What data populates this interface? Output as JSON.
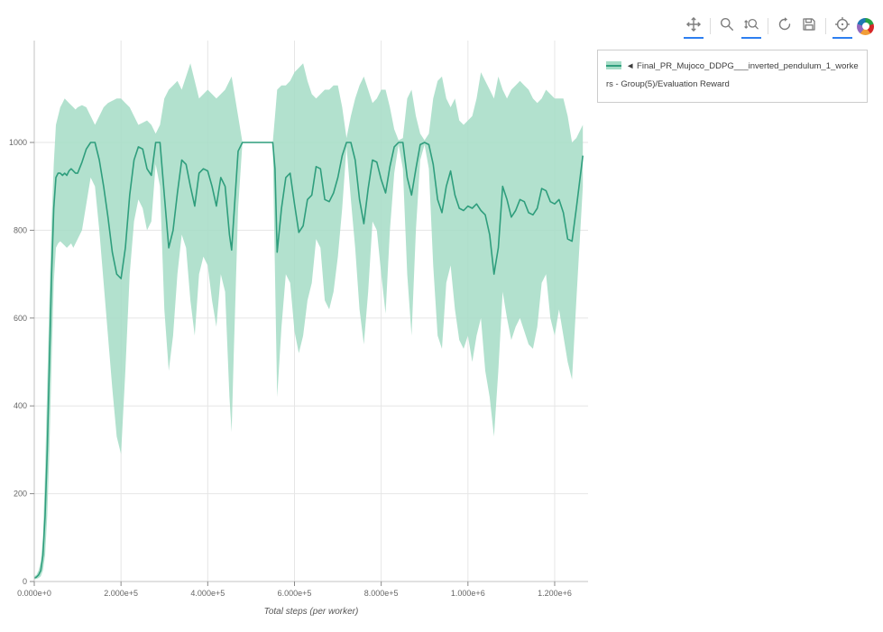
{
  "toolbar": {
    "tools": [
      {
        "name": "pan",
        "active": true
      },
      {
        "name": "box-zoom",
        "active": false
      },
      {
        "name": "wheel-zoom",
        "active": true
      },
      {
        "name": "reset",
        "active": false
      },
      {
        "name": "save",
        "active": false
      },
      {
        "name": "hover",
        "active": true
      }
    ],
    "logo_name": "bokeh-logo"
  },
  "legend": {
    "label": "◄ Final_PR_Mujoco_DDPG___inverted_pendulum_1_workers - Group(5)/Evaluation Reward"
  },
  "chart_data": {
    "type": "line",
    "title": "",
    "xlabel": "Total steps (per worker)",
    "ylabel": "",
    "xlim": [
      0,
      1277000
    ],
    "ylim": [
      0,
      1232
    ],
    "grid": true,
    "legend_position": "top-right-outside",
    "x_ticks": {
      "values": [
        0,
        200000,
        400000,
        600000,
        800000,
        1000000,
        1200000
      ],
      "labels": [
        "0.000e+0",
        "2.000e+5",
        "4.000e+5",
        "6.000e+5",
        "8.000e+5",
        "1.000e+6",
        "1.200e+6"
      ]
    },
    "y_ticks": {
      "values": [
        0,
        200,
        400,
        600,
        800,
        1000
      ],
      "labels": [
        "0",
        "200",
        "400",
        "600",
        "800",
        "1000"
      ]
    },
    "colors": {
      "line": "#2f9e7d",
      "band": "#a5dcc6",
      "grid": "#e6e6e6",
      "axis": "#c3c3c3",
      "tick": "#8a8a8a",
      "tick_text": "#666666",
      "xlabel_text": "#555555"
    },
    "series": [
      {
        "name": "Final_PR_Mujoco_DDPG___inverted_pendulum_1_workers - Group(5)/Evaluation Reward",
        "note": "points are [x_steps, mean, lower_band, upper_band]",
        "points": [
          [
            0,
            8,
            5,
            12
          ],
          [
            5000,
            10,
            6,
            15
          ],
          [
            10000,
            15,
            8,
            25
          ],
          [
            15000,
            25,
            12,
            45
          ],
          [
            20000,
            60,
            25,
            100
          ],
          [
            25000,
            150,
            60,
            250
          ],
          [
            30000,
            300,
            150,
            450
          ],
          [
            35000,
            500,
            300,
            650
          ],
          [
            40000,
            700,
            500,
            820
          ],
          [
            45000,
            850,
            680,
            950
          ],
          [
            50000,
            920,
            760,
            1040
          ],
          [
            55000,
            930,
            770,
            1060
          ],
          [
            60000,
            930,
            775,
            1080
          ],
          [
            65000,
            925,
            770,
            1090
          ],
          [
            70000,
            930,
            765,
            1100
          ],
          [
            75000,
            925,
            760,
            1095
          ],
          [
            80000,
            935,
            765,
            1090
          ],
          [
            85000,
            940,
            770,
            1085
          ],
          [
            90000,
            935,
            760,
            1080
          ],
          [
            95000,
            930,
            770,
            1075
          ],
          [
            100000,
            930,
            780,
            1080
          ],
          [
            110000,
            955,
            800,
            1085
          ],
          [
            120000,
            985,
            860,
            1080
          ],
          [
            130000,
            1000,
            920,
            1060
          ],
          [
            140000,
            1000,
            900,
            1040
          ],
          [
            150000,
            960,
            800,
            1060
          ],
          [
            160000,
            900,
            680,
            1080
          ],
          [
            170000,
            830,
            560,
            1090
          ],
          [
            180000,
            750,
            440,
            1095
          ],
          [
            190000,
            700,
            330,
            1100
          ],
          [
            200000,
            690,
            290,
            1100
          ],
          [
            210000,
            760,
            480,
            1090
          ],
          [
            220000,
            880,
            700,
            1080
          ],
          [
            230000,
            960,
            820,
            1060
          ],
          [
            240000,
            990,
            870,
            1040
          ],
          [
            250000,
            985,
            850,
            1045
          ],
          [
            260000,
            940,
            800,
            1050
          ],
          [
            270000,
            925,
            820,
            1040
          ],
          [
            280000,
            1000,
            950,
            1020
          ],
          [
            290000,
            1000,
            900,
            1040
          ],
          [
            300000,
            880,
            620,
            1100
          ],
          [
            310000,
            760,
            480,
            1120
          ],
          [
            320000,
            800,
            560,
            1130
          ],
          [
            330000,
            885,
            700,
            1140
          ],
          [
            340000,
            960,
            790,
            1120
          ],
          [
            350000,
            950,
            760,
            1150
          ],
          [
            360000,
            900,
            640,
            1180
          ],
          [
            370000,
            855,
            560,
            1140
          ],
          [
            380000,
            930,
            700,
            1100
          ],
          [
            390000,
            940,
            740,
            1110
          ],
          [
            400000,
            935,
            720,
            1120
          ],
          [
            410000,
            900,
            640,
            1110
          ],
          [
            420000,
            855,
            580,
            1100
          ],
          [
            430000,
            920,
            700,
            1110
          ],
          [
            440000,
            900,
            660,
            1120
          ],
          [
            450000,
            790,
            420,
            1140
          ],
          [
            455000,
            755,
            340,
            1150
          ],
          [
            460000,
            830,
            520,
            1120
          ],
          [
            470000,
            980,
            850,
            1060
          ],
          [
            480000,
            1000,
            1000,
            1000
          ],
          [
            500000,
            1000,
            1000,
            1000
          ],
          [
            520000,
            1000,
            1000,
            1000
          ],
          [
            540000,
            1000,
            1000,
            1000
          ],
          [
            550000,
            1000,
            1000,
            1000
          ],
          [
            555000,
            940,
            700,
            1060
          ],
          [
            560000,
            750,
            420,
            1120
          ],
          [
            570000,
            850,
            580,
            1130
          ],
          [
            580000,
            920,
            700,
            1130
          ],
          [
            590000,
            930,
            680,
            1140
          ],
          [
            600000,
            860,
            570,
            1160
          ],
          [
            610000,
            795,
            520,
            1170
          ],
          [
            620000,
            810,
            560,
            1180
          ],
          [
            630000,
            870,
            640,
            1140
          ],
          [
            640000,
            880,
            680,
            1110
          ],
          [
            650000,
            945,
            780,
            1100
          ],
          [
            660000,
            940,
            760,
            1110
          ],
          [
            670000,
            870,
            640,
            1120
          ],
          [
            680000,
            865,
            620,
            1120
          ],
          [
            690000,
            885,
            660,
            1130
          ],
          [
            700000,
            920,
            740,
            1130
          ],
          [
            710000,
            970,
            850,
            1080
          ],
          [
            720000,
            1000,
            990,
            1010
          ],
          [
            730000,
            1000,
            870,
            1060
          ],
          [
            740000,
            960,
            760,
            1100
          ],
          [
            750000,
            870,
            620,
            1130
          ],
          [
            760000,
            815,
            540,
            1150
          ],
          [
            770000,
            895,
            660,
            1120
          ],
          [
            780000,
            960,
            820,
            1090
          ],
          [
            790000,
            955,
            800,
            1100
          ],
          [
            800000,
            915,
            700,
            1120
          ],
          [
            810000,
            885,
            610,
            1120
          ],
          [
            820000,
            945,
            800,
            1080
          ],
          [
            830000,
            990,
            930,
            1030
          ],
          [
            840000,
            1000,
            995,
            1005
          ],
          [
            850000,
            1000,
            940,
            1010
          ],
          [
            860000,
            920,
            700,
            1100
          ],
          [
            870000,
            880,
            560,
            1120
          ],
          [
            880000,
            940,
            800,
            1060
          ],
          [
            890000,
            995,
            960,
            1020
          ],
          [
            900000,
            1000,
            995,
            1005
          ],
          [
            910000,
            995,
            940,
            1020
          ],
          [
            920000,
            950,
            720,
            1100
          ],
          [
            930000,
            870,
            560,
            1140
          ],
          [
            940000,
            840,
            530,
            1150
          ],
          [
            950000,
            900,
            680,
            1100
          ],
          [
            960000,
            935,
            720,
            1080
          ],
          [
            970000,
            880,
            620,
            1100
          ],
          [
            980000,
            850,
            550,
            1050
          ],
          [
            990000,
            845,
            530,
            1040
          ],
          [
            1000000,
            855,
            560,
            1050
          ],
          [
            1010000,
            850,
            500,
            1060
          ],
          [
            1020000,
            860,
            560,
            1100
          ],
          [
            1030000,
            845,
            600,
            1160
          ],
          [
            1040000,
            835,
            480,
            1140
          ],
          [
            1050000,
            790,
            420,
            1120
          ],
          [
            1060000,
            700,
            330,
            1100
          ],
          [
            1070000,
            760,
            480,
            1150
          ],
          [
            1080000,
            900,
            660,
            1120
          ],
          [
            1090000,
            870,
            600,
            1100
          ],
          [
            1100000,
            830,
            550,
            1120
          ],
          [
            1110000,
            845,
            580,
            1130
          ],
          [
            1120000,
            870,
            600,
            1140
          ],
          [
            1130000,
            865,
            570,
            1130
          ],
          [
            1140000,
            840,
            540,
            1120
          ],
          [
            1150000,
            835,
            530,
            1100
          ],
          [
            1160000,
            850,
            580,
            1090
          ],
          [
            1170000,
            895,
            680,
            1100
          ],
          [
            1180000,
            890,
            700,
            1120
          ],
          [
            1190000,
            865,
            600,
            1110
          ],
          [
            1200000,
            860,
            560,
            1100
          ],
          [
            1210000,
            870,
            620,
            1100
          ],
          [
            1220000,
            840,
            560,
            1100
          ],
          [
            1230000,
            780,
            500,
            1060
          ],
          [
            1240000,
            775,
            460,
            1000
          ],
          [
            1250000,
            850,
            640,
            1010
          ],
          [
            1265000,
            970,
            900,
            1040
          ]
        ]
      }
    ]
  }
}
